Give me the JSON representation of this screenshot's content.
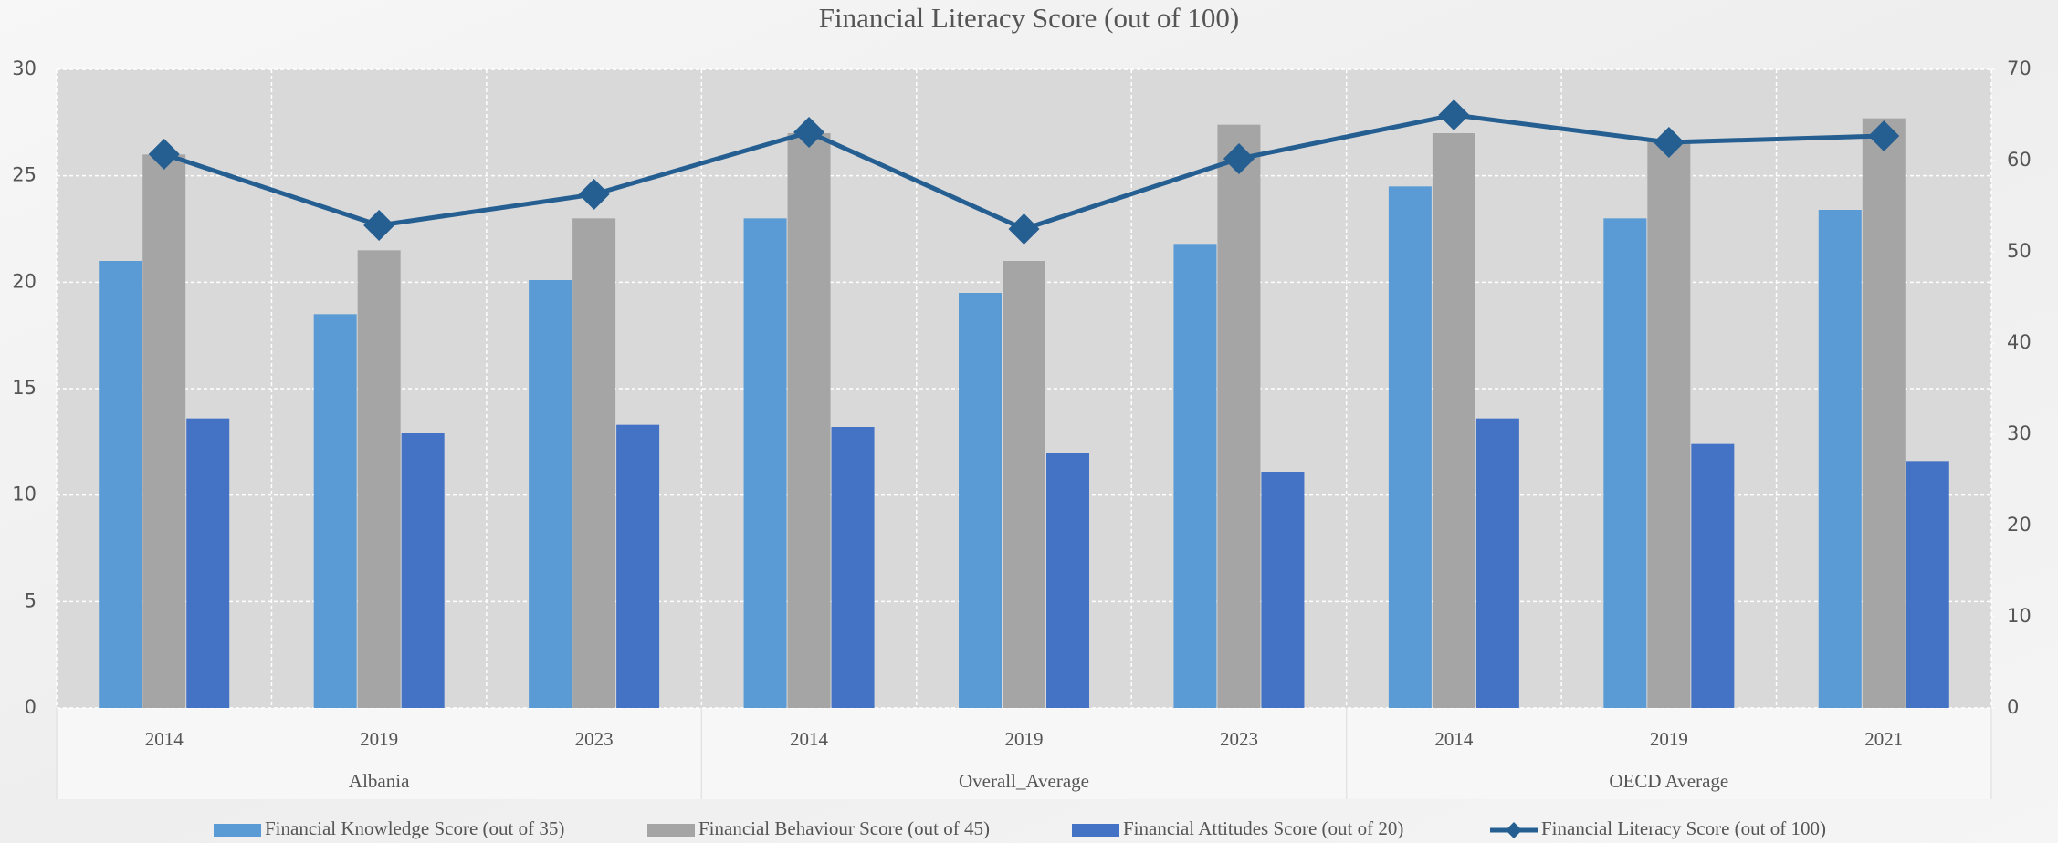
{
  "chart_data": {
    "type": "bar_line",
    "title": "Financial Literacy Score (out of  100)",
    "category_groups": [
      {
        "name": "Albania",
        "categories": [
          "2014",
          "2019",
          "2023"
        ]
      },
      {
        "name": "Overall_Average",
        "categories": [
          "2014",
          "2019",
          "2023"
        ]
      },
      {
        "name": "OECD Average",
        "categories": [
          "2014",
          "2019",
          "2021"
        ]
      }
    ],
    "series": [
      {
        "name": "Financial Knowledge Score (out of 35)",
        "type": "bar",
        "color": "#5b9bd5",
        "values": [
          21.0,
          18.5,
          20.1,
          23.0,
          19.5,
          21.8,
          24.5,
          23.0,
          23.4
        ]
      },
      {
        "name": "Financial Behaviour Score (out of 45)",
        "type": "bar",
        "color": "#a5a5a5",
        "values": [
          26.0,
          21.5,
          23.0,
          27.0,
          21.0,
          27.4,
          27.0,
          26.6,
          27.7
        ]
      },
      {
        "name": "Financial Attitudes Score (out of 20)",
        "type": "bar",
        "color": "#4472c4",
        "values": [
          13.6,
          12.9,
          13.3,
          13.2,
          12.0,
          11.1,
          13.6,
          12.4,
          11.6
        ]
      },
      {
        "name": "Financial Literacy Score (out of 100)",
        "type": "line",
        "axis": "y2",
        "color": "#255e91",
        "values": [
          60.7,
          52.9,
          56.3,
          63.1,
          52.5,
          60.2,
          65.0,
          62.0,
          62.7
        ]
      }
    ],
    "ylim": [
      0,
      30
    ],
    "yticks": [
      0,
      5,
      10,
      15,
      20,
      25,
      30
    ],
    "y2lim": [
      0,
      70
    ],
    "y2ticks": [
      0,
      10,
      20,
      30,
      40,
      50,
      60,
      70
    ],
    "grid": true,
    "legend": "bottom"
  }
}
